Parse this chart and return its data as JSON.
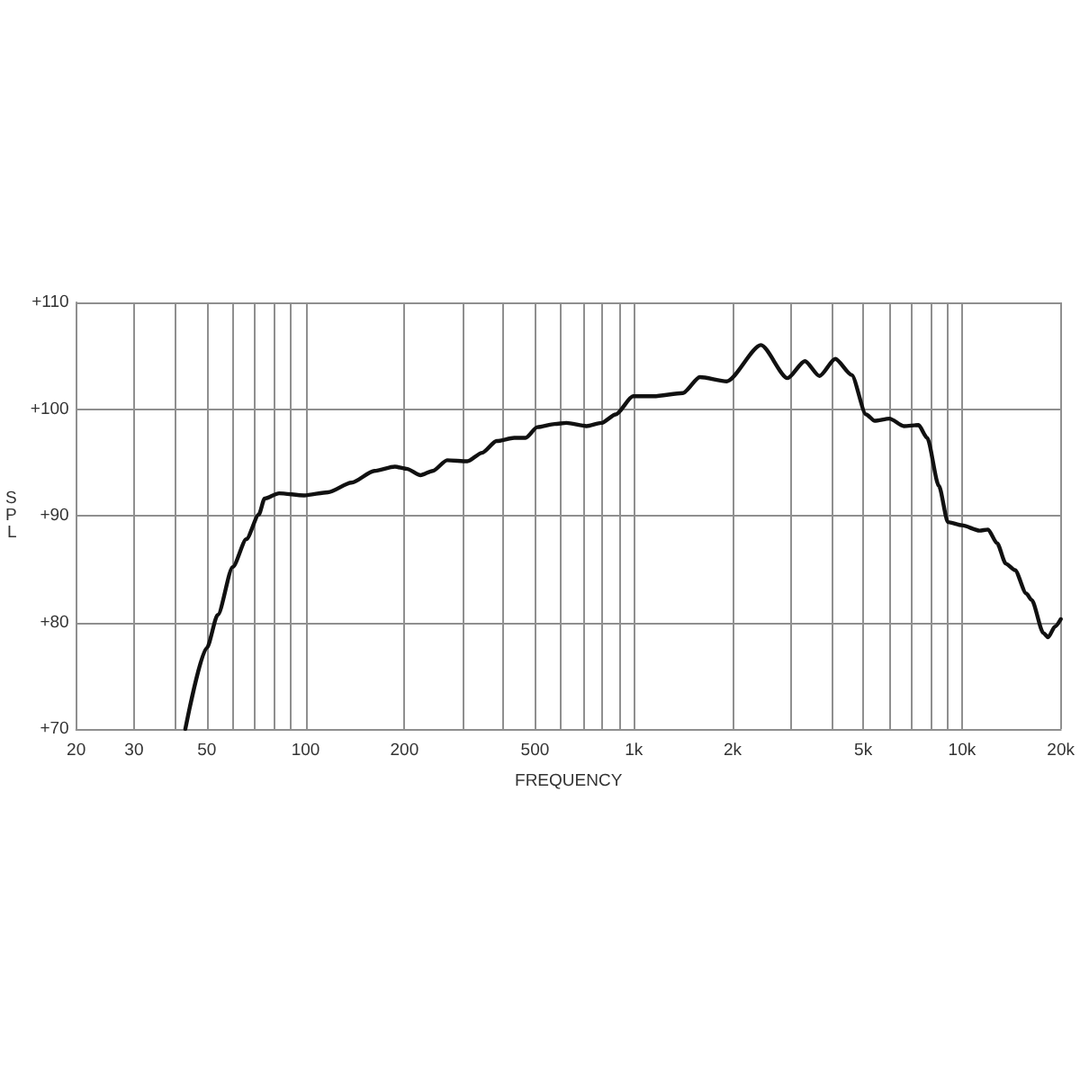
{
  "chart_data": {
    "type": "line",
    "xlabel": "FREQUENCY",
    "ylabel": "SPL",
    "log": "x",
    "xlim": [
      20,
      20000
    ],
    "xticks": [
      20,
      30,
      {
        "value": 40,
        "label": null
      },
      50,
      {
        "value": 60,
        "label": null
      },
      {
        "value": 70,
        "label": null
      },
      {
        "value": 80,
        "label": null
      },
      {
        "value": 90,
        "label": null
      },
      100,
      200,
      {
        "value": 300,
        "label": null
      },
      {
        "value": 400,
        "label": null
      },
      500,
      {
        "value": 600,
        "label": null
      },
      {
        "value": 700,
        "label": null
      },
      {
        "value": 800,
        "label": null
      },
      {
        "value": 900,
        "label": null
      },
      {
        "value": 1000,
        "label": "1k"
      },
      {
        "value": 2000,
        "label": "2k"
      },
      {
        "value": 3000,
        "label": null
      },
      {
        "value": 4000,
        "label": null
      },
      {
        "value": 5000,
        "label": "5k"
      },
      {
        "value": 6000,
        "label": null
      },
      {
        "value": 7000,
        "label": null
      },
      {
        "value": 8000,
        "label": null
      },
      {
        "value": 9000,
        "label": null
      },
      {
        "value": 10000,
        "label": "10k"
      },
      {
        "value": 20000,
        "label": "20k"
      }
    ],
    "ylim": [
      70,
      110
    ],
    "yticks": [
      {
        "value": 70,
        "label": "+70"
      },
      {
        "value": 80,
        "label": "+80"
      },
      {
        "value": 90,
        "label": "+90"
      },
      {
        "value": 100,
        "label": "+100"
      },
      {
        "value": 110,
        "label": "+110"
      }
    ],
    "grid": true,
    "marker": "none",
    "line_style": "solid",
    "series": [
      {
        "color": "#111111",
        "x": [
          43,
          50,
          54,
          60,
          66,
          72,
          75,
          83,
          99,
          117,
          138,
          162,
          187,
          203,
          224,
          244,
          270,
          311,
          345,
          382,
          432,
          468,
          508,
          574,
          623,
          718,
          796,
          881,
          995,
          1150,
          1410,
          1590,
          1920,
          2440,
          2940,
          3320,
          3680,
          4110,
          4610,
          5100,
          5420,
          6010,
          6650,
          7370,
          7830,
          8500,
          9060,
          10000,
          11300,
          12000,
          12800,
          13600,
          14500,
          15700,
          16300,
          17700,
          18300,
          19200,
          20000
        ],
        "values": [
          70,
          77.6,
          80.7,
          85.2,
          87.8,
          90.1,
          91.6,
          92.1,
          91.9,
          92.2,
          93.1,
          94.2,
          94.6,
          94.4,
          93.8,
          94.2,
          95.2,
          95.1,
          95.9,
          97.0,
          97.3,
          97.3,
          98.3,
          98.6,
          98.7,
          98.4,
          98.7,
          99.5,
          101.2,
          101.2,
          101.5,
          103.0,
          102.6,
          106.0,
          102.9,
          104.5,
          103.1,
          104.7,
          103.2,
          99.5,
          98.9,
          99.1,
          98.4,
          98.5,
          97.3,
          92.8,
          89.4,
          89.1,
          88.6,
          88.7,
          87.4,
          85.5,
          84.9,
          82.7,
          82.1,
          79.0,
          78.6,
          79.6,
          80.3
        ]
      }
    ]
  }
}
